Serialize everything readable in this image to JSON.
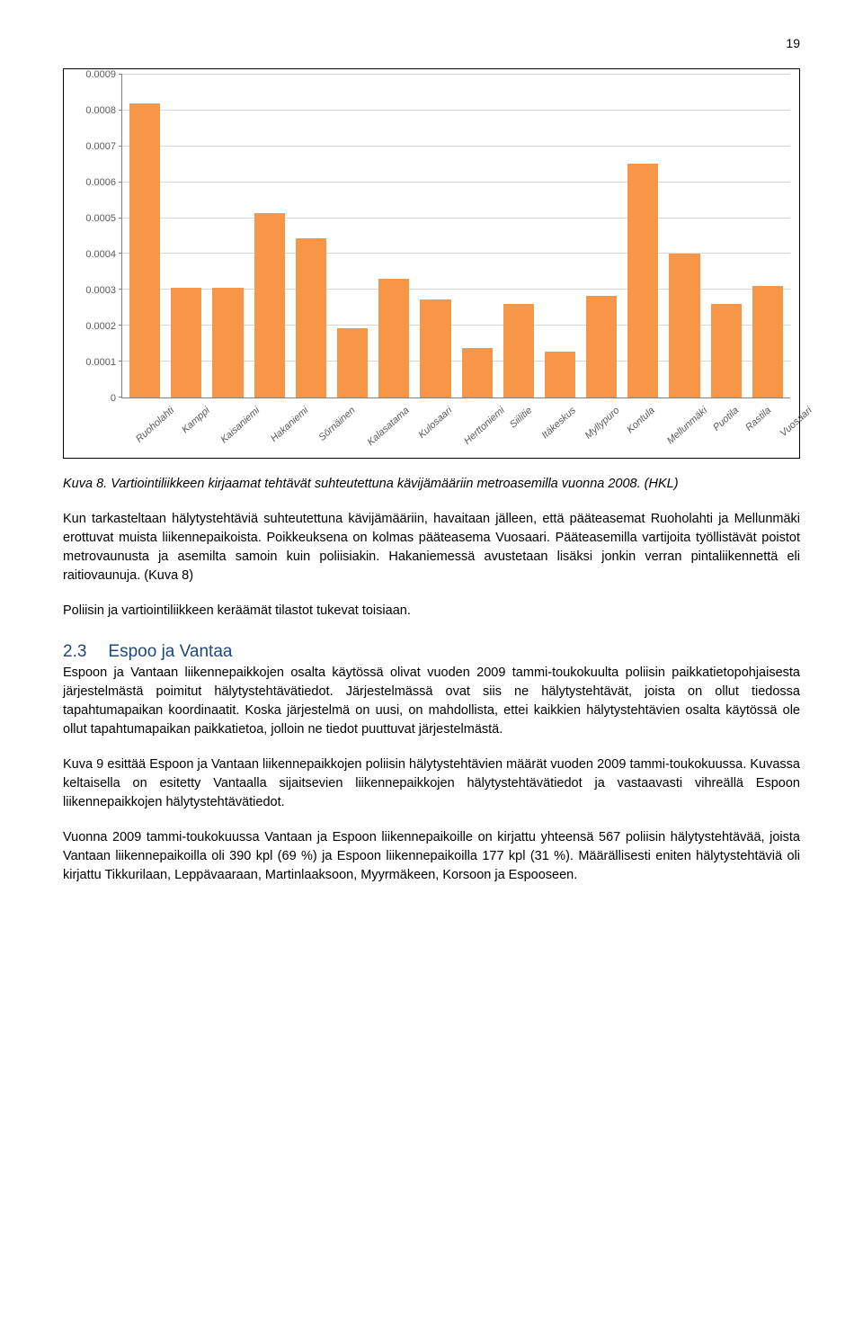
{
  "page_number": "19",
  "chart": {
    "type": "bar",
    "ylim": [
      0,
      0.0009
    ],
    "yticks": [
      {
        "v": 0,
        "label": "0"
      },
      {
        "v": 0.0001,
        "label": "0.0001"
      },
      {
        "v": 0.0002,
        "label": "0.0002"
      },
      {
        "v": 0.0003,
        "label": "0.0003"
      },
      {
        "v": 0.0004,
        "label": "0.0004"
      },
      {
        "v": 0.0005,
        "label": "0.0005"
      },
      {
        "v": 0.0006,
        "label": "0.0006"
      },
      {
        "v": 0.0007,
        "label": "0.0007"
      },
      {
        "v": 0.0008,
        "label": "0.0008"
      },
      {
        "v": 0.0009,
        "label": "0.0009"
      }
    ],
    "bar_color": "#f79646",
    "grid_color": "#d9d9d9",
    "axis_color": "#808080",
    "tick_font_color": "#595959",
    "tick_fontsize": 11,
    "background_color": "#ffffff",
    "bars": [
      {
        "label": "Ruoholahti",
        "value": 0.00082
      },
      {
        "label": "Kamppi",
        "value": 0.000305
      },
      {
        "label": "Kaisaniemi",
        "value": 0.000307
      },
      {
        "label": "Hakaniemi",
        "value": 0.000515
      },
      {
        "label": "Sörnäinen",
        "value": 0.000445
      },
      {
        "label": "Kalasatama",
        "value": 0.000193
      },
      {
        "label": "Kulosaari",
        "value": 0.00033
      },
      {
        "label": "Herttoniemi",
        "value": 0.000273
      },
      {
        "label": "Siilitie",
        "value": 0.000137
      },
      {
        "label": "Itäkeskus",
        "value": 0.000262
      },
      {
        "label": "Myllypuro",
        "value": 0.000127
      },
      {
        "label": "Kontula",
        "value": 0.000283
      },
      {
        "label": "Mellunmäki",
        "value": 0.000653
      },
      {
        "label": "Puotila",
        "value": 0.0004
      },
      {
        "label": "Rastila",
        "value": 0.00026
      },
      {
        "label": "Vuosaari",
        "value": 0.00031
      }
    ]
  },
  "caption": "Kuva 8. Vartiointiliikkeen kirjaamat tehtävät suhteutettuna kävijämääriin metroasemilla vuonna 2008. (HKL)",
  "para1": "Kun tarkasteltaan hälytystehtäviä suhteutettuna kävijämääriin, havaitaan jälleen, että pääteasemat Ruoholahti ja Mellunmäki erottuvat muista liikennepaikoista. Poikkeuksena on kolmas pääteasema Vuosaari. Pääteasemilla vartijoita työllistävät poistot metrovaunusta ja asemilta samoin kuin poliisiakin. Hakaniemessä avustetaan lisäksi jonkin verran pintaliikennettä eli raitiovaunuja. (Kuva 8)",
  "para2": "Poliisin ja vartiointiliikkeen keräämät tilastot tukevat toisiaan.",
  "section": {
    "num": "2.3",
    "title": "Espoo ja Vantaa"
  },
  "para3": "Espoon ja Vantaan liikennepaikkojen osalta käytössä olivat vuoden 2009 tammi-toukokuulta poliisin paikkatietopohjaisesta järjestelmästä poimitut hälytystehtävätiedot. Järjestelmässä ovat siis ne hälytystehtävät, joista on ollut tiedossa tapahtumapaikan koordinaatit. Koska järjestelmä on uusi, on mahdollista, ettei kaikkien hälytystehtävien osalta käytössä ole ollut tapahtumapaikan paikkatietoa, jolloin ne tiedot puuttuvat järjestelmästä.",
  "para4": "Kuva 9 esittää Espoon ja Vantaan liikennepaikkojen poliisin hälytystehtävien määrät vuoden 2009 tammi-toukokuussa. Kuvassa keltaisella on esitetty Vantaalla sijaitsevien liikennepaikkojen hälytystehtävätiedot ja vastaavasti vihreällä Espoon liikennepaikkojen hälytystehtävätiedot.",
  "para5": "Vuonna 2009 tammi-toukokuussa Vantaan ja Espoon liikennepaikoille on kirjattu yhteensä 567 poliisin hälytystehtävää, joista Vantaan liikennepaikoilla oli 390 kpl (69 %) ja Espoon liikennepaikoilla 177 kpl (31 %). Määrällisesti eniten hälytystehtäviä oli kirjattu Tikkurilaan, Leppävaaraan, Martinlaaksoon, Myyrmäkeen, Korsoon ja Espooseen."
}
